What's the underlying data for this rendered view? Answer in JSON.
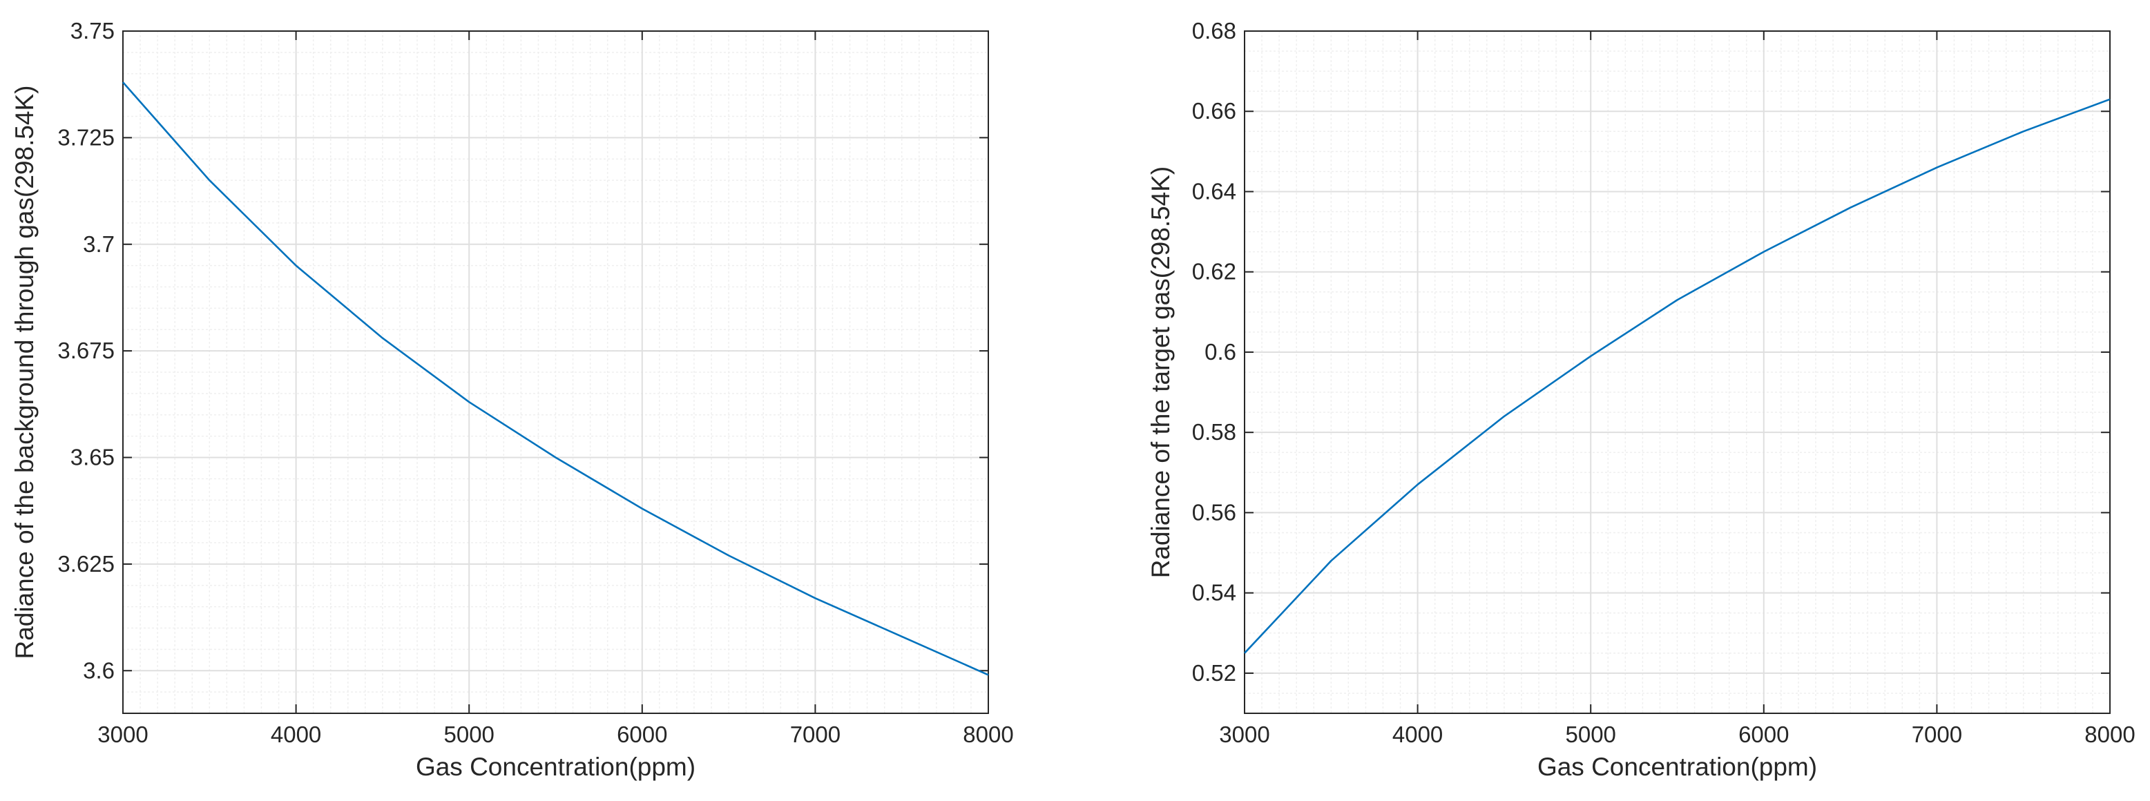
{
  "colors": {
    "line": "#0072BD",
    "axis": "#262626",
    "grid_major": "#dfdfdf",
    "grid_minor": "#efefef"
  },
  "chart_data": [
    {
      "type": "line",
      "xlabel": "Gas Concentration(ppm)",
      "ylabel": "Radiance of the background through gas(298.54K)",
      "xlim": [
        3000,
        8000
      ],
      "ylim": [
        3.59,
        3.75
      ],
      "xticks": [
        3000,
        4000,
        5000,
        6000,
        7000,
        8000
      ],
      "xtick_labels": [
        "3000",
        "4000",
        "5000",
        "6000",
        "7000",
        "8000"
      ],
      "yticks": [
        3.6,
        3.625,
        3.65,
        3.675,
        3.7,
        3.725,
        3.75
      ],
      "ytick_labels": [
        "3.6",
        "3.625",
        "3.65",
        "3.675",
        "3.7",
        "3.725",
        "3.75"
      ],
      "grid": true,
      "minor_grid": true,
      "series": [
        {
          "x": [
            3000,
            3500,
            4000,
            4500,
            5000,
            5500,
            6000,
            6500,
            7000,
            7500,
            8000
          ],
          "y": [
            3.738,
            3.715,
            3.695,
            3.678,
            3.663,
            3.65,
            3.638,
            3.627,
            3.617,
            3.608,
            3.599
          ]
        }
      ]
    },
    {
      "type": "line",
      "xlabel": "Gas Concentration(ppm)",
      "ylabel": "Radiance of the target gas(298.54K)",
      "xlim": [
        3000,
        8000
      ],
      "ylim": [
        0.51,
        0.68
      ],
      "xticks": [
        3000,
        4000,
        5000,
        6000,
        7000,
        8000
      ],
      "xtick_labels": [
        "3000",
        "4000",
        "5000",
        "6000",
        "7000",
        "8000"
      ],
      "yticks": [
        0.52,
        0.54,
        0.56,
        0.58,
        0.6,
        0.62,
        0.64,
        0.66,
        0.68
      ],
      "ytick_labels": [
        "0.52",
        "0.54",
        "0.56",
        "0.58",
        "0.6",
        "0.62",
        "0.64",
        "0.66",
        "0.68"
      ],
      "grid": true,
      "minor_grid": true,
      "series": [
        {
          "x": [
            3000,
            3500,
            4000,
            4500,
            5000,
            5500,
            6000,
            6500,
            7000,
            7500,
            8000
          ],
          "y": [
            0.525,
            0.548,
            0.567,
            0.584,
            0.599,
            0.613,
            0.625,
            0.636,
            0.646,
            0.655,
            0.663
          ]
        }
      ]
    }
  ]
}
